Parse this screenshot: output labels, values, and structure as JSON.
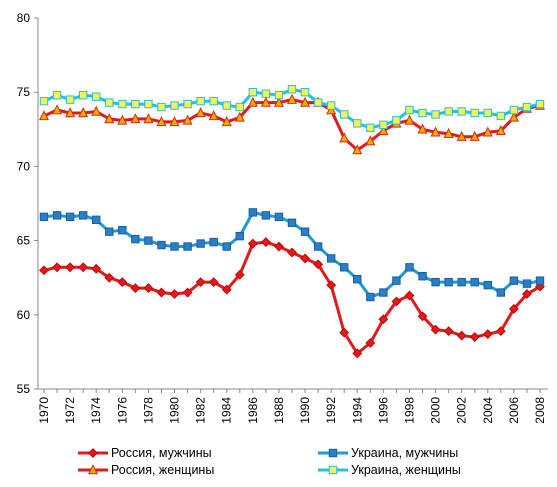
{
  "chart_data": {
    "type": "line",
    "x": [
      1970,
      1971,
      1972,
      1973,
      1974,
      1975,
      1976,
      1977,
      1978,
      1979,
      1980,
      1981,
      1982,
      1983,
      1984,
      1985,
      1986,
      1987,
      1988,
      1989,
      1990,
      1991,
      1992,
      1993,
      1994,
      1995,
      1996,
      1997,
      1998,
      1999,
      2000,
      2001,
      2002,
      2003,
      2004,
      2005,
      2006,
      2007,
      2008
    ],
    "x_ticks": [
      1970,
      1972,
      1974,
      1976,
      1978,
      1980,
      1982,
      1984,
      1986,
      1988,
      1990,
      1992,
      1994,
      1996,
      1998,
      2000,
      2002,
      2004,
      2006,
      2008
    ],
    "ylim": [
      55,
      80
    ],
    "y_ticks": [
      55,
      60,
      65,
      70,
      75,
      80
    ],
    "grid": false,
    "legend_position": "bottom",
    "series": [
      {
        "name": "Россия, мужчины",
        "color": "#e31a1c",
        "marker": "diamond",
        "marker_fill": "#e31a1c",
        "marker_stroke": "#c40000",
        "values": [
          63.0,
          63.2,
          63.2,
          63.2,
          63.1,
          62.5,
          62.2,
          61.8,
          61.8,
          61.5,
          61.4,
          61.5,
          62.2,
          62.2,
          61.7,
          62.7,
          64.8,
          64.9,
          64.6,
          64.2,
          63.8,
          63.4,
          62.0,
          58.8,
          57.4,
          58.1,
          59.7,
          60.9,
          61.3,
          59.9,
          59.0,
          58.9,
          58.6,
          58.5,
          58.7,
          58.9,
          60.4,
          61.4,
          61.9
        ]
      },
      {
        "name": "Украина, мужчины",
        "color": "#1e9ad6",
        "marker": "square",
        "marker_fill": "#2a7fc9",
        "marker_stroke": "#1a5f9a",
        "values": [
          66.6,
          66.7,
          66.6,
          66.7,
          66.4,
          65.6,
          65.7,
          65.1,
          65.0,
          64.7,
          64.6,
          64.6,
          64.8,
          64.9,
          64.6,
          65.3,
          66.9,
          66.7,
          66.6,
          66.2,
          65.6,
          64.6,
          63.8,
          63.2,
          62.4,
          61.2,
          61.5,
          62.3,
          63.2,
          62.6,
          62.2,
          62.2,
          62.2,
          62.2,
          62.0,
          61.5,
          62.3,
          62.1,
          62.3
        ]
      },
      {
        "name": "Россия, женщины",
        "color": "#e31a1c",
        "marker": "triangle",
        "marker_fill": "#f2a900",
        "marker_stroke": "#d12c10",
        "values": [
          73.4,
          73.8,
          73.6,
          73.6,
          73.7,
          73.2,
          73.1,
          73.2,
          73.2,
          73.0,
          73.0,
          73.1,
          73.6,
          73.4,
          73.0,
          73.3,
          74.3,
          74.3,
          74.3,
          74.5,
          74.3,
          74.3,
          73.8,
          71.9,
          71.1,
          71.7,
          72.4,
          72.9,
          73.1,
          72.5,
          72.3,
          72.2,
          72.0,
          72.0,
          72.3,
          72.4,
          73.3,
          73.9,
          74.1
        ]
      },
      {
        "name": "Украина, женщины",
        "color": "#1ec4e8",
        "marker": "square",
        "marker_fill": "#ecf55a",
        "marker_stroke": "#35b8dc",
        "values": [
          74.4,
          74.8,
          74.5,
          74.8,
          74.7,
          74.3,
          74.2,
          74.2,
          74.2,
          74.0,
          74.1,
          74.2,
          74.4,
          74.4,
          74.1,
          74.0,
          75.0,
          74.9,
          74.8,
          75.2,
          75.0,
          74.3,
          74.1,
          73.5,
          72.9,
          72.6,
          72.8,
          73.1,
          73.8,
          73.6,
          73.5,
          73.7,
          73.7,
          73.6,
          73.6,
          73.4,
          73.8,
          74.0,
          74.2
        ]
      }
    ]
  }
}
